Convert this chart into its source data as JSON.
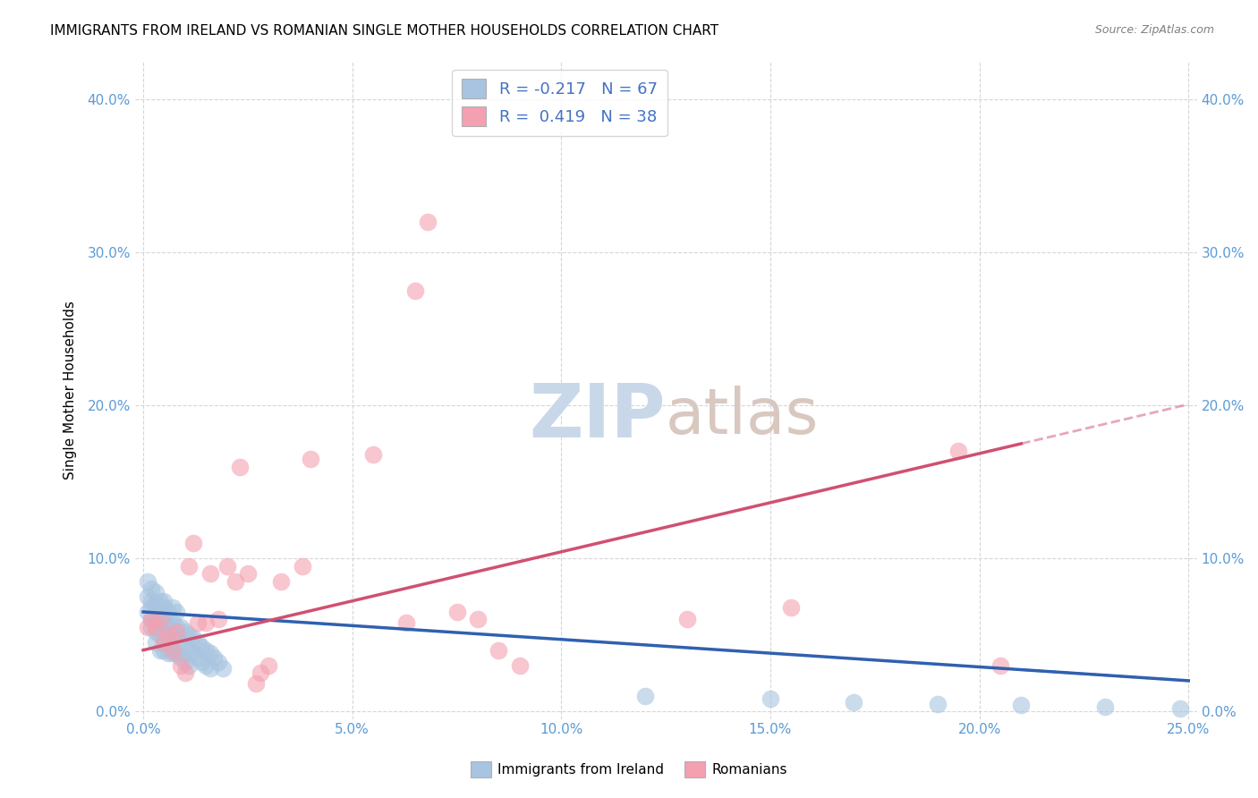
{
  "title": "IMMIGRANTS FROM IRELAND VS ROMANIAN SINGLE MOTHER HOUSEHOLDS CORRELATION CHART",
  "source": "Source: ZipAtlas.com",
  "ylabel_label": "Single Mother Households",
  "legend_labels": [
    "Immigrants from Ireland",
    "Romanians"
  ],
  "legend_R": [
    -0.217,
    0.419
  ],
  "legend_N": [
    67,
    38
  ],
  "xlim": [
    -0.002,
    0.252
  ],
  "ylim": [
    -0.005,
    0.425
  ],
  "ireland_color": "#a8c4e0",
  "romanian_color": "#f4a0b0",
  "ireland_line_color": "#3060b0",
  "romanian_line_color": "#d05070",
  "ireland_scatter": {
    "x": [
      0.001,
      0.001,
      0.001,
      0.002,
      0.002,
      0.002,
      0.002,
      0.002,
      0.003,
      0.003,
      0.003,
      0.003,
      0.003,
      0.003,
      0.004,
      0.004,
      0.004,
      0.004,
      0.004,
      0.004,
      0.005,
      0.005,
      0.005,
      0.005,
      0.005,
      0.005,
      0.006,
      0.006,
      0.006,
      0.006,
      0.007,
      0.007,
      0.007,
      0.007,
      0.008,
      0.008,
      0.008,
      0.008,
      0.009,
      0.009,
      0.009,
      0.01,
      0.01,
      0.01,
      0.011,
      0.011,
      0.011,
      0.012,
      0.012,
      0.013,
      0.013,
      0.014,
      0.014,
      0.015,
      0.015,
      0.016,
      0.016,
      0.017,
      0.018,
      0.019,
      0.12,
      0.15,
      0.17,
      0.19,
      0.21,
      0.23,
      0.248
    ],
    "y": [
      0.065,
      0.075,
      0.085,
      0.06,
      0.072,
      0.08,
      0.055,
      0.068,
      0.058,
      0.07,
      0.078,
      0.052,
      0.063,
      0.045,
      0.06,
      0.072,
      0.05,
      0.065,
      0.04,
      0.055,
      0.058,
      0.068,
      0.048,
      0.06,
      0.072,
      0.04,
      0.055,
      0.065,
      0.048,
      0.038,
      0.058,
      0.068,
      0.05,
      0.038,
      0.055,
      0.065,
      0.048,
      0.038,
      0.055,
      0.045,
      0.035,
      0.052,
      0.042,
      0.032,
      0.05,
      0.04,
      0.03,
      0.048,
      0.038,
      0.045,
      0.035,
      0.042,
      0.032,
      0.04,
      0.03,
      0.038,
      0.028,
      0.035,
      0.032,
      0.028,
      0.01,
      0.008,
      0.006,
      0.005,
      0.004,
      0.003,
      0.002
    ]
  },
  "romanian_scatter": {
    "x": [
      0.001,
      0.002,
      0.003,
      0.004,
      0.005,
      0.006,
      0.007,
      0.008,
      0.009,
      0.01,
      0.011,
      0.012,
      0.013,
      0.015,
      0.016,
      0.018,
      0.02,
      0.022,
      0.023,
      0.025,
      0.027,
      0.028,
      0.03,
      0.033,
      0.038,
      0.04,
      0.055,
      0.063,
      0.065,
      0.068,
      0.075,
      0.08,
      0.085,
      0.09,
      0.13,
      0.155,
      0.195,
      0.205
    ],
    "y": [
      0.055,
      0.06,
      0.055,
      0.06,
      0.045,
      0.05,
      0.04,
      0.052,
      0.03,
      0.025,
      0.095,
      0.11,
      0.058,
      0.058,
      0.09,
      0.06,
      0.095,
      0.085,
      0.16,
      0.09,
      0.018,
      0.025,
      0.03,
      0.085,
      0.095,
      0.165,
      0.168,
      0.058,
      0.275,
      0.32,
      0.065,
      0.06,
      0.04,
      0.03,
      0.06,
      0.068,
      0.17,
      0.03
    ]
  },
  "background_color": "#ffffff",
  "grid_color": "#cccccc",
  "title_fontsize": 11,
  "tick_label_color": "#5b9bd5",
  "watermark_zip_color": "#c8d8e8",
  "watermark_atlas_color": "#d8c8c0",
  "watermark_fontsize": 60
}
